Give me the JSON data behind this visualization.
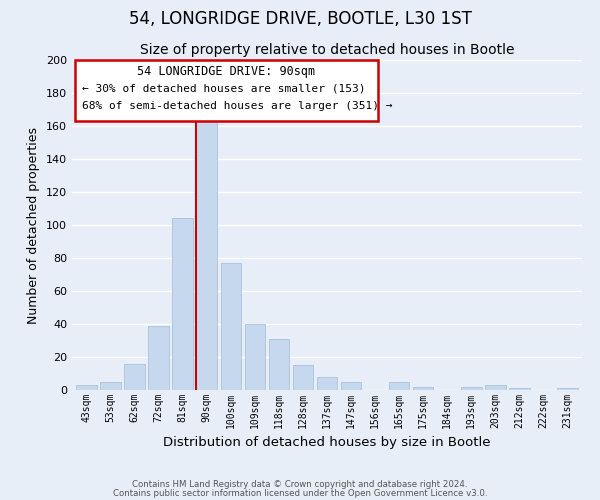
{
  "title": "54, LONGRIDGE DRIVE, BOOTLE, L30 1ST",
  "subtitle": "Size of property relative to detached houses in Bootle",
  "xlabel": "Distribution of detached houses by size in Bootle",
  "ylabel": "Number of detached properties",
  "bar_labels": [
    "43sqm",
    "53sqm",
    "62sqm",
    "72sqm",
    "81sqm",
    "90sqm",
    "100sqm",
    "109sqm",
    "118sqm",
    "128sqm",
    "137sqm",
    "147sqm",
    "156sqm",
    "165sqm",
    "175sqm",
    "184sqm",
    "193sqm",
    "203sqm",
    "212sqm",
    "222sqm",
    "231sqm"
  ],
  "bar_values": [
    3,
    5,
    16,
    39,
    104,
    164,
    77,
    40,
    31,
    15,
    8,
    5,
    0,
    5,
    2,
    0,
    2,
    3,
    1,
    0,
    1
  ],
  "bar_color": "#c5d8ed",
  "bar_edge_color": "#a0bcd8",
  "highlight_index": 5,
  "highlight_line_color": "#cc0000",
  "ylim": [
    0,
    200
  ],
  "yticks": [
    0,
    20,
    40,
    60,
    80,
    100,
    120,
    140,
    160,
    180,
    200
  ],
  "annotation_title": "54 LONGRIDGE DRIVE: 90sqm",
  "annotation_line1": "← 30% of detached houses are smaller (153)",
  "annotation_line2": "68% of semi-detached houses are larger (351) →",
  "annotation_box_color": "#ffffff",
  "annotation_box_edge_color": "#cc0000",
  "footer_line1": "Contains HM Land Registry data © Crown copyright and database right 2024.",
  "footer_line2": "Contains public sector information licensed under the Open Government Licence v3.0.",
  "background_color": "#e8eef7",
  "plot_bg_color": "#e8eef7",
  "grid_color": "#ffffff",
  "title_fontsize": 12,
  "subtitle_fontsize": 10
}
